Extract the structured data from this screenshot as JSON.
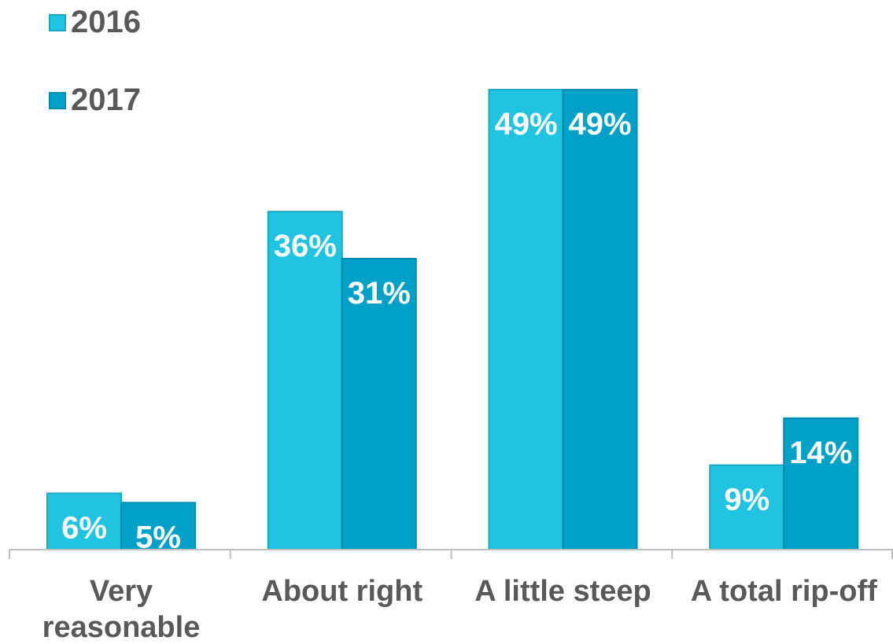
{
  "chart_data": {
    "type": "bar",
    "categories": [
      "Very reasonable",
      "About right",
      "A little steep",
      "A total rip-off"
    ],
    "category_lines": [
      [
        "Very",
        "reasonable"
      ],
      [
        "About right"
      ],
      [
        "A little steep"
      ],
      [
        "A total rip-off"
      ]
    ],
    "series": [
      {
        "name": "2016",
        "values": [
          6,
          36,
          49,
          9
        ],
        "labels": [
          "6%",
          "36%",
          "49%",
          "9%"
        ],
        "color": "#20c4e0"
      },
      {
        "name": "2017",
        "values": [
          5,
          31,
          49,
          14
        ],
        "labels": [
          "5%",
          "31%",
          "49%",
          "14%"
        ],
        "color": "#00a0c8"
      }
    ],
    "ylim": [
      0,
      49
    ],
    "grid": false,
    "legend_position": "top-left"
  }
}
